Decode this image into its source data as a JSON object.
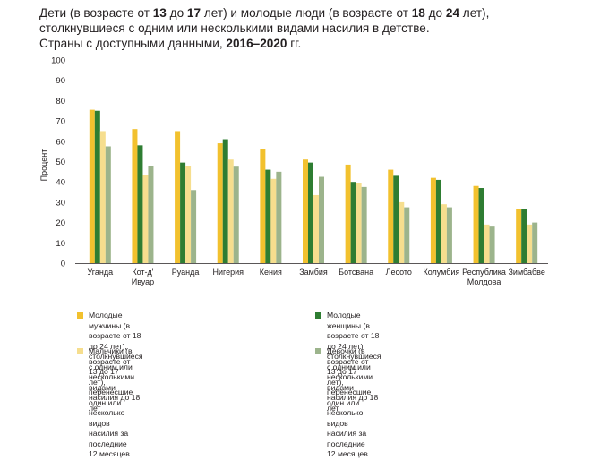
{
  "title": {
    "line1_parts": [
      "Дети (в возрасте от ",
      "13",
      " до ",
      "17",
      " лет) и молодые люди (в возрасте от ",
      "18",
      " до ",
      "24",
      " лет),"
    ],
    "line2": "столкнувшиеся с одним или несколькими видами насилия в детстве.",
    "line3_parts": [
      "Страны с доступными данными, ",
      "2016–2020",
      " гг."
    ]
  },
  "chart_data": {
    "type": "bar",
    "ylabel": "Процент",
    "ylim": [
      0,
      100
    ],
    "yticks": [
      0,
      10,
      20,
      30,
      40,
      50,
      60,
      70,
      80,
      90,
      100
    ],
    "grid": false,
    "legend_position": "bottom",
    "categories": [
      [
        "Уганда"
      ],
      [
        "Кот-д'",
        "Ивуар"
      ],
      [
        "Руанда"
      ],
      [
        "Нигерия"
      ],
      [
        "Кения"
      ],
      [
        "Замбия"
      ],
      [
        "Ботсвана"
      ],
      [
        "Лесото"
      ],
      [
        "Колумбия"
      ],
      [
        "Республика",
        "Молдова"
      ],
      [
        "Зимбабве"
      ]
    ],
    "series": [
      {
        "name": "Молодые мужчины (в возрасте от 18 до 24 лет),\nстолкнувшиеся с одним или несколькими видами\nнасилия до 18 лет",
        "color": "#f2c12e",
        "values": [
          75.5,
          66,
          65,
          59,
          56,
          51,
          48.5,
          46,
          42,
          38,
          26.5
        ]
      },
      {
        "name": "Молодые женщины (в возрасте от 18 до 24 лет),\nстолкнувшиеся с одним или несколькими видами\nнасилия до 18 лет",
        "color": "#2e7d32",
        "values": [
          75,
          58,
          49.5,
          61,
          46,
          49.5,
          40,
          43,
          41,
          37,
          26.5
        ]
      },
      {
        "name": "Мальчики (в возрасте от 13 до 17 лет), перенесшие\nодин или несколько видов насилия за последние\n12 месяцев",
        "color": "#f6de8e",
        "values": [
          65,
          43.5,
          48,
          51,
          41.5,
          33.5,
          39.5,
          30,
          29,
          19,
          19
        ]
      },
      {
        "name": "Девочки (в возрасте от 13 до 17 лет), перенесшие\nодин или несколько видов насилия за последние 12 месяцев",
        "color": "#9cb48c",
        "values": [
          57.5,
          48,
          36,
          47.5,
          45,
          42.5,
          37.5,
          27.5,
          27.5,
          18,
          20
        ]
      }
    ]
  }
}
